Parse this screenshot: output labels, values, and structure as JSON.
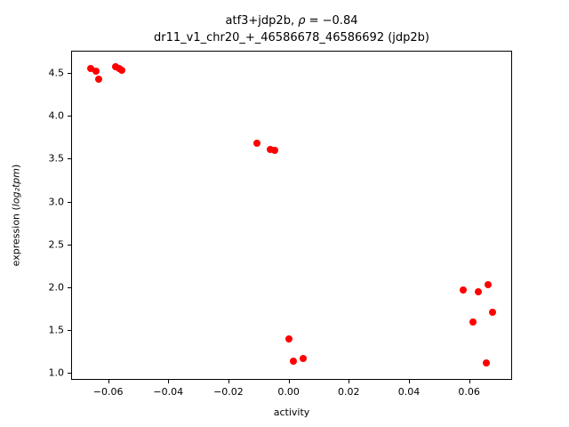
{
  "chart_data": {
    "type": "scatter",
    "title_prefix": "atf3+jdp2b, ",
    "title_rho": "ρ",
    "title_suffix": " = −0.84",
    "subtitle": "dr11_v1_chr20_+_46586678_46586692 (jdp2b)",
    "xlabel": "activity",
    "ylabel_prefix": "expression (",
    "ylabel_italic": "log₂tpm",
    "ylabel_suffix": ")",
    "xlim": [
      -0.072,
      0.074
    ],
    "ylim": [
      0.93,
      4.75
    ],
    "xticks": [
      -0.06,
      -0.04,
      -0.02,
      0.0,
      0.02,
      0.04,
      0.06
    ],
    "yticks": [
      1.0,
      1.5,
      2.0,
      2.5,
      3.0,
      3.5,
      4.0,
      4.5
    ],
    "marker_color": "#ff0000",
    "grid": false,
    "legend": null,
    "points": [
      [
        -0.0658,
        4.55
      ],
      [
        -0.0641,
        4.52
      ],
      [
        -0.0632,
        4.43
      ],
      [
        -0.0576,
        4.57
      ],
      [
        -0.0564,
        4.55
      ],
      [
        -0.0555,
        4.53
      ],
      [
        -0.0105,
        3.68
      ],
      [
        -0.006,
        3.61
      ],
      [
        -0.0045,
        3.6
      ],
      [
        0.0,
        1.4
      ],
      [
        0.0016,
        1.14
      ],
      [
        0.0048,
        1.17
      ],
      [
        0.058,
        1.97
      ],
      [
        0.0613,
        1.59
      ],
      [
        0.063,
        1.95
      ],
      [
        0.0656,
        1.12
      ],
      [
        0.0662,
        2.03
      ],
      [
        0.0677,
        1.71
      ]
    ]
  }
}
